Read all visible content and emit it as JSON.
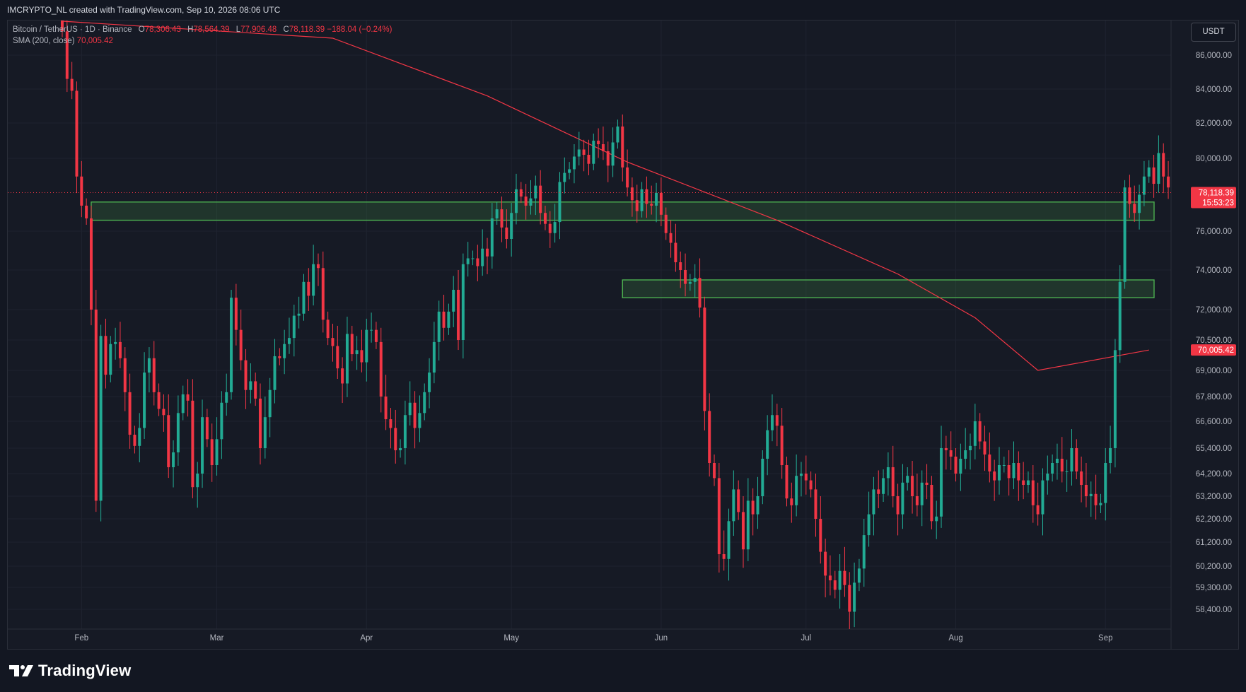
{
  "header": {
    "title": "IMCRYPTO_NL created with TradingView.com, Sep 10, 2026 08:06 UTC"
  },
  "legend": {
    "symbol": "Bitcoin / TetherUS · 1D · Binance",
    "open_label": "O",
    "open": "78,306.43",
    "high_label": "H",
    "high": "78,564.39",
    "low_label": "L",
    "low": "77,906.48",
    "close_label": "C",
    "close": "78,118.39",
    "change": "−188.04 (−0.24%)",
    "indicator": "SMA (200, close)",
    "indicator_value": "70,005.42"
  },
  "currency_button": "USDT",
  "price_badge": {
    "price": "78,118.39",
    "countdown": "15:53:23"
  },
  "sma_badge": "70,005.42",
  "branding": {
    "logo_text": "TradingView"
  },
  "colors": {
    "up": "#22ab94",
    "down": "#f23645",
    "sma": "#f23645",
    "zone": "#4caf50",
    "background": "#161a25"
  },
  "chart_data": {
    "type": "candlestick",
    "title": "Bitcoin / TetherUS · 1D · Binance",
    "ylim": [
      57500,
      87500
    ],
    "y_ticks": [
      {
        "value": 86000,
        "label": "86,000.00"
      },
      {
        "value": 84000,
        "label": "84,000.00"
      },
      {
        "value": 82000,
        "label": "82,000.00"
      },
      {
        "value": 80000,
        "label": "80,000.00"
      },
      {
        "value": 76000,
        "label": "76,000.00"
      },
      {
        "value": 74000,
        "label": "74,000.00"
      },
      {
        "value": 72000,
        "label": "72,000.00"
      },
      {
        "value": 70500,
        "label": "70,500.00"
      },
      {
        "value": 69000,
        "label": "69,000.00"
      },
      {
        "value": 67800,
        "label": "67,800.00"
      },
      {
        "value": 66600,
        "label": "66,600.00"
      },
      {
        "value": 65400,
        "label": "65,400.00"
      },
      {
        "value": 64200,
        "label": "64,200.00"
      },
      {
        "value": 63200,
        "label": "63,200.00"
      },
      {
        "value": 62200,
        "label": "62,200.00"
      },
      {
        "value": 61200,
        "label": "61,200.00"
      },
      {
        "value": 60200,
        "label": "60,200.00"
      },
      {
        "value": 59300,
        "label": "59,300.00"
      },
      {
        "value": 58400,
        "label": "58,400.00"
      }
    ],
    "x_ticks": [
      {
        "date": "2026-02-01",
        "label": "Feb"
      },
      {
        "date": "2026-03-01",
        "label": "Mar"
      },
      {
        "date": "2026-04-01",
        "label": "Apr"
      },
      {
        "date": "2026-05-01",
        "label": "May"
      },
      {
        "date": "2026-06-01",
        "label": "Jun"
      },
      {
        "date": "2026-07-01",
        "label": "Jul"
      },
      {
        "date": "2026-08-01",
        "label": "Aug"
      },
      {
        "date": "2026-09-01",
        "label": "Sep"
      }
    ],
    "start_date": "2026-01-28",
    "closes": [
      87400,
      84600,
      83900,
      79000,
      77400,
      76700,
      72000,
      63000,
      70700,
      68800,
      70300,
      70400,
      69600,
      68000,
      66000,
      65500,
      66300,
      68900,
      69600,
      68000,
      67200,
      66900,
      64500,
      65200,
      67000,
      67900,
      67600,
      63600,
      64200,
      66800,
      65800,
      64600,
      65800,
      67500,
      68000,
      72600,
      71000,
      69500,
      68100,
      68500,
      67700,
      65400,
      66800,
      68100,
      69700,
      69600,
      70300,
      70600,
      71700,
      71800,
      73400,
      72700,
      74300,
      74100,
      71500,
      70600,
      70200,
      69100,
      68400,
      70800,
      69800,
      70000,
      69400,
      71000,
      71000,
      70400,
      67800,
      66700,
      66300,
      65300,
      65400,
      66900,
      67500,
      66300,
      67000,
      68000,
      68900,
      70400,
      71900,
      71100,
      71900,
      73000,
      70500,
      74300,
      74600,
      74600,
      74200,
      75100,
      74700,
      76700,
      77200,
      76200,
      75600,
      77000,
      78300,
      77900,
      77400,
      77800,
      78500,
      77000,
      76400,
      75900,
      76500,
      78700,
      79200,
      79400,
      80100,
      80500,
      80200,
      79700,
      81000,
      80800,
      80400,
      79600,
      80900,
      81800,
      79500,
      78400,
      77700,
      77100,
      78300,
      77500,
      77400,
      78100,
      76900,
      75900,
      75400,
      74400,
      74000,
      73300,
      73400,
      73600,
      72100,
      67100,
      64700,
      64000,
      60700,
      60500,
      62100,
      63500,
      62500,
      60900,
      63000,
      62400,
      63200,
      64900,
      66200,
      66900,
      66400,
      64600,
      63100,
      62800,
      64100,
      64200,
      63900,
      63500,
      62200,
      60800,
      59800,
      59600,
      59200,
      60000,
      59400,
      58300,
      59500,
      60100,
      61500,
      62400,
      63500,
      63300,
      64000,
      64500,
      63200,
      62400,
      63800,
      64100,
      63200,
      62800,
      63800,
      63700,
      62100,
      62300,
      65400,
      65300,
      65000,
      64200,
      64900,
      65300,
      65500,
      66600,
      65700,
      65100,
      64300,
      63900,
      64600,
      64600,
      64000,
      64700,
      63900,
      63700,
      63900,
      62800,
      62400,
      63900,
      64200,
      64700,
      64900,
      64300,
      64300,
      65400,
      64300,
      63700,
      63200,
      63300,
      62800,
      62900,
      64700,
      65400,
      70000,
      73400,
      78400,
      77500,
      77000,
      78000,
      79000,
      79500,
      78600,
      80300,
      79000,
      78400,
      77400,
      78800,
      77300,
      77000,
      77600,
      78900,
      77100,
      77100,
      81200,
      80900,
      79800,
      80300,
      79600,
      79100,
      78300,
      78118
    ],
    "candles_note": "Daily OHLC candles reconstructed from the chart; opens are previous closes",
    "sma200": {
      "name": "SMA (200, close)",
      "points": [
        {
          "date": "2026-01-28",
          "value": 88000
        },
        {
          "date": "2026-03-25",
          "value": 87000
        },
        {
          "date": "2026-04-26",
          "value": 83600
        },
        {
          "date": "2026-05-25",
          "value": 79800
        },
        {
          "date": "2026-06-25",
          "value": 76600
        },
        {
          "date": "2026-07-20",
          "value": 73800
        },
        {
          "date": "2026-08-05",
          "value": 71600
        },
        {
          "date": "2026-08-18",
          "value": 69000
        },
        {
          "date": "2026-09-10",
          "value": 70005
        }
      ]
    },
    "zones": [
      {
        "from": "2026-02-03",
        "to": "2026-09-15",
        "top": 77600,
        "bottom": 76600
      },
      {
        "from": "2026-05-24",
        "to": "2026-09-15",
        "top": 73500,
        "bottom": 72600
      }
    ],
    "last_price": 78118.39
  }
}
